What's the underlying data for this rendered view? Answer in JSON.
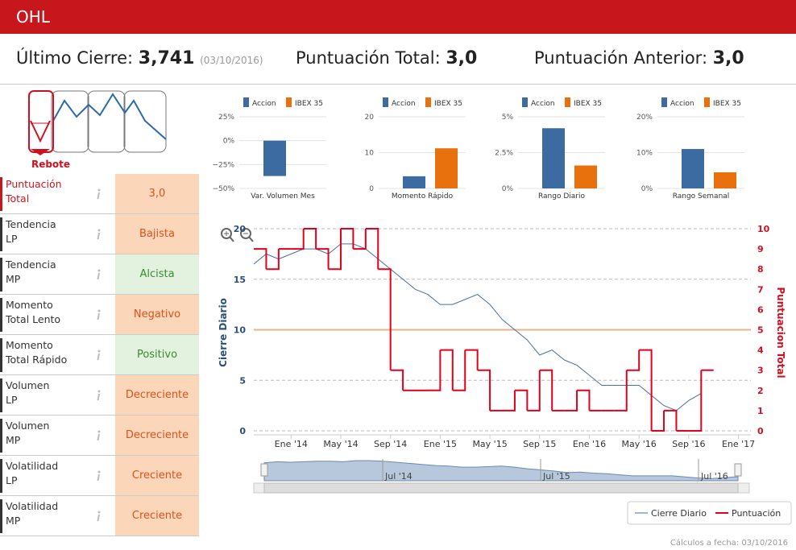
{
  "header": {
    "title": "OHL"
  },
  "summary": {
    "last_close_label": "Último Cierre:",
    "last_close": "3,741",
    "date": "(03/10/2016)",
    "total_label": "Puntuación Total:",
    "total": "3,0",
    "previous_label": "Puntuación Anterior:",
    "previous": "3,0"
  },
  "signal": {
    "label": "Rebote"
  },
  "table": {
    "rows": [
      {
        "label": "Puntuación\nTotal",
        "value": "3,0",
        "background": "#fcd6b8",
        "color": "#d9531e",
        "highlight": true
      },
      {
        "label": "Tendencia\nLP",
        "value": "Bajista",
        "background": "#fcd6b8",
        "color": "#d9531e"
      },
      {
        "label": "Tendencia\nMP",
        "value": "Alcista",
        "background": "#e3f1df",
        "color": "#3a8a2e"
      },
      {
        "label": "Momento\nTotal Lento",
        "value": "Negativo",
        "background": "#fcd6b8",
        "color": "#d9531e"
      },
      {
        "label": "Momento\nTotal Rápido",
        "value": "Positivo",
        "background": "#e3f1df",
        "color": "#3a8a2e"
      },
      {
        "label": "Volumen\nLP",
        "value": "Decreciente",
        "background": "#fcd6b8",
        "color": "#d9531e"
      },
      {
        "label": "Volumen\nMP",
        "value": "Decreciente",
        "background": "#fcd6b8",
        "color": "#d9531e"
      },
      {
        "label": "Volatilidad\nLP",
        "value": "Creciente",
        "background": "#fcd6b8",
        "color": "#d9531e"
      },
      {
        "label": "Volatilidad\nMP",
        "value": "Creciente",
        "background": "#fcd6b8",
        "color": "#d9531e"
      }
    ]
  },
  "chart_data": [
    {
      "type": "bar",
      "categories": [
        "Var. Volumen Mes"
      ],
      "series": [
        {
          "name": "Accion",
          "color": "#3c6ba2",
          "values": [
            -37
          ]
        },
        {
          "name": "IBEX 35",
          "color": "#e8710e",
          "values": [
            0
          ]
        }
      ],
      "ylim": [
        -50,
        25
      ],
      "yticks": [
        {
          "value": -50,
          "label": "−50%"
        },
        {
          "value": -25,
          "label": "−25%"
        },
        {
          "value": 0,
          "label": "0%"
        },
        {
          "value": 25,
          "label": "25%"
        }
      ]
    },
    {
      "type": "bar",
      "categories": [
        "Momento Rápido"
      ],
      "series": [
        {
          "name": "Accion",
          "color": "#3c6ba2",
          "values": [
            3.4
          ]
        },
        {
          "name": "IBEX 35",
          "color": "#e8710e",
          "values": [
            11.2
          ]
        }
      ],
      "ylim": [
        0,
        20
      ],
      "yticks": [
        0,
        10,
        20
      ]
    },
    {
      "type": "bar",
      "categories": [
        "Rango Diario"
      ],
      "series": [
        {
          "name": "Accion",
          "color": "#3c6ba2",
          "values": [
            4.2
          ]
        },
        {
          "name": "IBEX 35",
          "color": "#e8710e",
          "values": [
            1.6
          ]
        }
      ],
      "ylim": [
        0,
        5
      ],
      "yticks": [
        {
          "value": 0,
          "label": "0%"
        },
        {
          "value": 2.5,
          "label": "2.5%"
        },
        {
          "value": 5,
          "label": "5%"
        }
      ]
    },
    {
      "type": "bar",
      "categories": [
        "Rango Semanal"
      ],
      "series": [
        {
          "name": "Accion",
          "color": "#3c6ba2",
          "values": [
            11
          ]
        },
        {
          "name": "IBEX 35",
          "color": "#e8710e",
          "values": [
            4.5
          ]
        }
      ],
      "ylim": [
        0,
        20
      ],
      "yticks": [
        {
          "value": 0,
          "label": "0%"
        },
        {
          "value": 10,
          "label": "10%"
        },
        {
          "value": 20,
          "label": "20%"
        }
      ]
    },
    {
      "type": "line",
      "ylabel": "Cierre Diario",
      "y2label": "Puntuacion Total",
      "grid": true,
      "legend": "bottom-right",
      "x": [
        "2013-10",
        "2013-11",
        "2013-12",
        "2014-01",
        "2014-02",
        "2014-03",
        "2014-04",
        "2014-05",
        "2014-06",
        "2014-07",
        "2014-08",
        "2014-09",
        "2014-10",
        "2014-11",
        "2014-12",
        "2015-01",
        "2015-02",
        "2015-03",
        "2015-04",
        "2015-05",
        "2015-06",
        "2015-07",
        "2015-08",
        "2015-09",
        "2015-10",
        "2015-11",
        "2015-12",
        "2016-01",
        "2016-02",
        "2016-03",
        "2016-04",
        "2016-05",
        "2016-06",
        "2016-07",
        "2016-08",
        "2016-09",
        "2016-10"
      ],
      "series": [
        {
          "name": "Cierre Diario",
          "color": "#4a6fa5",
          "axis": "y",
          "values": [
            16.5,
            17.5,
            17,
            17.5,
            18,
            18,
            17.5,
            18.5,
            18.5,
            18,
            17,
            16,
            15,
            14,
            13.5,
            12.5,
            12.5,
            13,
            13.5,
            12.5,
            11,
            10,
            9,
            7.5,
            8,
            7,
            6.5,
            5.5,
            4.5,
            4.5,
            4.5,
            4.5,
            3.5,
            2.5,
            2,
            3,
            3.7
          ]
        },
        {
          "name": "Puntuación",
          "color": "#e3001b",
          "axis": "y2",
          "step": true,
          "values": [
            9,
            8,
            9,
            9,
            10,
            9,
            8,
            10,
            9,
            10,
            8,
            3,
            2,
            2,
            2,
            4,
            2,
            4,
            3,
            1,
            1,
            2,
            1,
            3,
            1,
            1,
            2,
            1,
            1,
            1,
            3,
            4,
            0,
            1,
            0,
            0,
            3
          ]
        }
      ],
      "xlim": [
        "2013-10",
        "2017-02"
      ],
      "xticks": [
        {
          "value": "2014-01",
          "label": "Ene '14"
        },
        {
          "value": "2014-05",
          "label": "May '14"
        },
        {
          "value": "2014-09",
          "label": "Sep '14"
        },
        {
          "value": "2015-01",
          "label": "Ene '15"
        },
        {
          "value": "2015-05",
          "label": "May '15"
        },
        {
          "value": "2015-09",
          "label": "Sep '15"
        },
        {
          "value": "2016-01",
          "label": "Ene '16"
        },
        {
          "value": "2016-05",
          "label": "May '16"
        },
        {
          "value": "2016-09",
          "label": "Sep '16"
        },
        {
          "value": "2017-01",
          "label": "Ene '17"
        }
      ],
      "ylim": [
        0,
        20
      ],
      "yticks": [
        0,
        5,
        10,
        15,
        20
      ],
      "y2lim": [
        0,
        10
      ],
      "y2ticks": [
        0,
        1,
        2,
        3,
        4,
        5,
        6,
        7,
        8,
        9,
        10
      ],
      "reference_line": {
        "axis": "y2",
        "value": 5,
        "color": "#e8b48a"
      },
      "navigator": {
        "xticks": [
          {
            "value": "2014-07",
            "label": "Jul '14"
          },
          {
            "value": "2015-07",
            "label": "Jul '15"
          },
          {
            "value": "2016-07",
            "label": "Jul '16"
          }
        ]
      }
    }
  ],
  "footer": "Cálculos a fecha: 03/10/2016"
}
